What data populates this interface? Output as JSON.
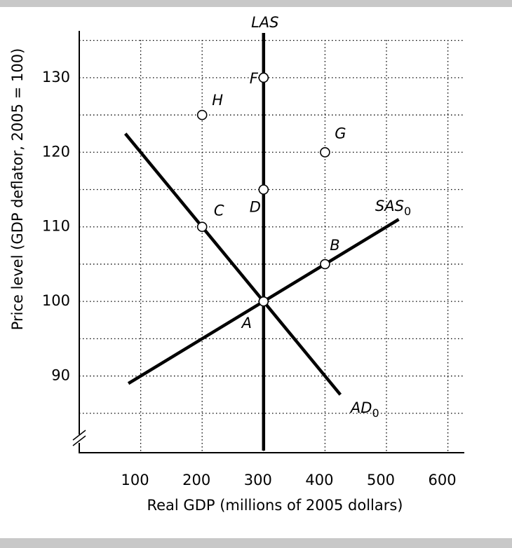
{
  "chart_data": {
    "type": "line",
    "x_label": "Real GDP (millions of 2005 dollars)",
    "y_label": "Price level (GDP deflator, 2005 = 100)",
    "xlim": [
      0,
      625
    ],
    "ylim": [
      80,
      136
    ],
    "xticks": [
      100,
      200,
      300,
      400,
      500,
      600
    ],
    "yticks": [
      90,
      100,
      110,
      120,
      130
    ],
    "yminor": [
      85,
      95,
      105,
      115,
      125,
      135
    ],
    "grid": true,
    "color": "#000000",
    "lines": [
      {
        "name": "LAS",
        "x": [
          300,
          300
        ],
        "y": [
          80,
          136
        ]
      },
      {
        "name": "SAS",
        "subscript": "0",
        "x": [
          80,
          520
        ],
        "y": [
          89,
          111
        ]
      },
      {
        "name": "AD",
        "subscript": "0",
        "x": [
          75,
          425
        ],
        "y": [
          122.5,
          87.5
        ]
      }
    ],
    "points": {
      "labels": [
        "F",
        "H",
        "G",
        "D",
        "C",
        "B",
        "A"
      ],
      "x": [
        300,
        200,
        400,
        300,
        200,
        400,
        300
      ],
      "y": [
        130,
        125,
        120,
        115,
        110,
        105,
        100
      ]
    }
  }
}
